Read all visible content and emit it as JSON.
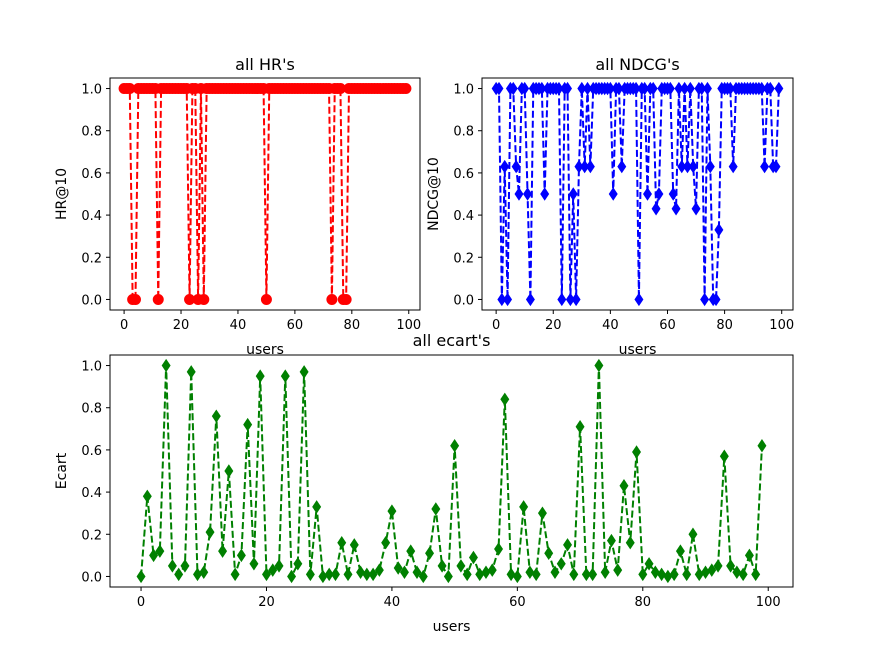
{
  "chart_data": [
    {
      "type": "line",
      "title": "all HR's",
      "xlabel": "users",
      "ylabel": "HR@10",
      "xlim": [
        -4.95,
        103.95
      ],
      "ylim": [
        -0.05,
        1.05
      ],
      "xticks": [
        0,
        20,
        40,
        60,
        80,
        100
      ],
      "yticks": [
        0.0,
        0.2,
        0.4,
        0.6,
        0.8,
        1.0
      ],
      "grid": false,
      "series": [
        {
          "color": "#ff0000",
          "linestyle": "dashed",
          "marker": "circle",
          "x": [
            0,
            1,
            2,
            3,
            4,
            5,
            6,
            7,
            8,
            9,
            10,
            11,
            12,
            13,
            14,
            15,
            16,
            17,
            18,
            19,
            20,
            21,
            22,
            23,
            24,
            25,
            26,
            27,
            28,
            29,
            30,
            31,
            32,
            33,
            34,
            35,
            36,
            37,
            38,
            39,
            40,
            41,
            42,
            43,
            44,
            45,
            46,
            47,
            48,
            49,
            50,
            51,
            52,
            53,
            54,
            55,
            56,
            57,
            58,
            59,
            60,
            61,
            62,
            63,
            64,
            65,
            66,
            67,
            68,
            69,
            70,
            71,
            72,
            73,
            74,
            75,
            76,
            77,
            78,
            79,
            80,
            81,
            82,
            83,
            84,
            85,
            86,
            87,
            88,
            89,
            90,
            91,
            92,
            93,
            94,
            95,
            96,
            97,
            98,
            99
          ],
          "values": [
            1,
            1,
            1,
            0,
            0,
            1,
            1,
            1,
            1,
            1,
            1,
            1,
            0,
            1,
            1,
            1,
            1,
            1,
            1,
            1,
            1,
            1,
            1,
            0,
            1,
            1,
            0,
            1,
            0,
            1,
            1,
            1,
            1,
            1,
            1,
            1,
            1,
            1,
            1,
            1,
            1,
            1,
            1,
            1,
            1,
            1,
            1,
            1,
            1,
            1,
            0,
            1,
            1,
            1,
            1,
            1,
            1,
            1,
            1,
            1,
            1,
            1,
            1,
            1,
            1,
            1,
            1,
            1,
            1,
            1,
            1,
            1,
            1,
            0,
            1,
            1,
            1,
            0,
            0,
            1,
            1,
            1,
            1,
            1,
            1,
            1,
            1,
            1,
            1,
            1,
            1,
            1,
            1,
            1,
            1,
            1,
            1,
            1,
            1,
            1
          ]
        }
      ]
    },
    {
      "type": "line",
      "title": "all NDCG's",
      "xlabel": "users",
      "ylabel": "NDCG@10",
      "xlim": [
        -4.95,
        103.95
      ],
      "ylim": [
        -0.05,
        1.05
      ],
      "xticks": [
        0,
        20,
        40,
        60,
        80,
        100
      ],
      "yticks": [
        0.0,
        0.2,
        0.4,
        0.6,
        0.8,
        1.0
      ],
      "grid": false,
      "series": [
        {
          "color": "#0000ff",
          "linestyle": "dashed",
          "marker": "diamond",
          "x": [
            0,
            1,
            2,
            3,
            4,
            5,
            6,
            7,
            8,
            9,
            10,
            11,
            12,
            13,
            14,
            15,
            16,
            17,
            18,
            19,
            20,
            21,
            22,
            23,
            24,
            25,
            26,
            27,
            28,
            29,
            30,
            31,
            32,
            33,
            34,
            35,
            36,
            37,
            38,
            39,
            40,
            41,
            42,
            43,
            44,
            45,
            46,
            47,
            48,
            49,
            50,
            51,
            52,
            53,
            54,
            55,
            56,
            57,
            58,
            59,
            60,
            61,
            62,
            63,
            64,
            65,
            66,
            67,
            68,
            69,
            70,
            71,
            72,
            73,
            74,
            75,
            76,
            77,
            78,
            79,
            80,
            81,
            82,
            83,
            84,
            85,
            86,
            87,
            88,
            89,
            90,
            91,
            92,
            93,
            94,
            95,
            96,
            97,
            98,
            99
          ],
          "values": [
            1,
            1,
            0,
            0.63,
            0,
            1,
            1,
            0.63,
            0.5,
            1,
            1,
            0.5,
            0,
            1,
            1,
            1,
            1,
            0.5,
            1,
            1,
            1,
            1,
            1,
            0,
            1,
            1,
            0,
            0.5,
            0,
            0.63,
            1,
            0.63,
            1,
            0.63,
            1,
            1,
            1,
            1,
            1,
            1,
            1,
            0.5,
            1,
            1,
            0.63,
            1,
            1,
            1,
            1,
            1,
            0,
            1,
            1,
            0.5,
            1,
            1,
            0.43,
            0.5,
            1,
            1,
            1,
            1,
            0.5,
            0.43,
            1,
            0.63,
            1,
            0.63,
            1,
            0.63,
            0.43,
            1,
            1,
            0,
            1,
            0.63,
            0,
            0,
            0.33,
            1,
            1,
            1,
            1,
            0.63,
            1,
            1,
            1,
            1,
            1,
            1,
            1,
            1,
            1,
            1,
            0.63,
            1,
            1,
            0.63,
            0.63,
            1
          ]
        }
      ]
    },
    {
      "type": "line",
      "title": "all ecart's",
      "xlabel": "users",
      "ylabel": "Ecart",
      "xlim": [
        -4.95,
        103.95
      ],
      "ylim": [
        -0.05,
        1.05
      ],
      "xticks": [
        0,
        20,
        40,
        60,
        80,
        100
      ],
      "yticks": [
        0.0,
        0.2,
        0.4,
        0.6,
        0.8,
        1.0
      ],
      "grid": false,
      "series": [
        {
          "color": "#008000",
          "linestyle": "dashed",
          "marker": "diamond",
          "x": [
            0,
            1,
            2,
            3,
            4,
            5,
            6,
            7,
            8,
            9,
            10,
            11,
            12,
            13,
            14,
            15,
            16,
            17,
            18,
            19,
            20,
            21,
            22,
            23,
            24,
            25,
            26,
            27,
            28,
            29,
            30,
            31,
            32,
            33,
            34,
            35,
            36,
            37,
            38,
            39,
            40,
            41,
            42,
            43,
            44,
            45,
            46,
            47,
            48,
            49,
            50,
            51,
            52,
            53,
            54,
            55,
            56,
            57,
            58,
            59,
            60,
            61,
            62,
            63,
            64,
            65,
            66,
            67,
            68,
            69,
            70,
            71,
            72,
            73,
            74,
            75,
            76,
            77,
            78,
            79,
            80,
            81,
            82,
            83,
            84,
            85,
            86,
            87,
            88,
            89,
            90,
            91,
            92,
            93,
            94,
            95,
            96,
            97,
            98,
            99
          ],
          "values": [
            0.0,
            0.38,
            0.1,
            0.12,
            1.0,
            0.05,
            0.01,
            0.05,
            0.97,
            0.01,
            0.02,
            0.21,
            0.76,
            0.12,
            0.5,
            0.01,
            0.1,
            0.72,
            0.06,
            0.95,
            0.01,
            0.03,
            0.05,
            0.95,
            0.0,
            0.06,
            0.97,
            0.01,
            0.33,
            0.0,
            0.01,
            0.01,
            0.16,
            0.01,
            0.15,
            0.02,
            0.01,
            0.01,
            0.03,
            0.16,
            0.31,
            0.04,
            0.02,
            0.12,
            0.02,
            0.0,
            0.11,
            0.32,
            0.05,
            0.0,
            0.62,
            0.05,
            0.01,
            0.09,
            0.01,
            0.02,
            0.03,
            0.13,
            0.84,
            0.01,
            0.0,
            0.33,
            0.02,
            0.01,
            0.3,
            0.11,
            0.02,
            0.06,
            0.15,
            0.01,
            0.71,
            0.01,
            0.01,
            1.0,
            0.02,
            0.17,
            0.03,
            0.43,
            0.16,
            0.59,
            0.01,
            0.06,
            0.02,
            0.01,
            0.0,
            0.01,
            0.12,
            0.01,
            0.2,
            0.01,
            0.02,
            0.03,
            0.05,
            0.57,
            0.05,
            0.02,
            0.01,
            0.1,
            0.01,
            0.62
          ]
        }
      ]
    }
  ]
}
